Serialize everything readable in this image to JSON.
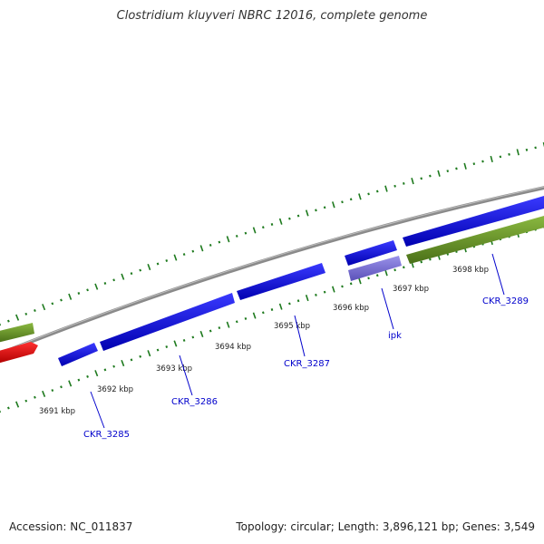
{
  "header": {
    "title": "Clostridium kluyveri NBRC 12016, complete genome"
  },
  "footer": {
    "accession": "Accession: NC_011837",
    "summary": "Topology: circular; Length: 3,896,121 bp; Genes: 3,549"
  },
  "colors": {
    "backbone": "#8a8a8a",
    "cds_blue": "#1010e0",
    "cds_light_purple": "#7a70d8",
    "cds_olive": "#6e9a2a",
    "cds_red": "#e01010",
    "tick_green": "#1e7a1e",
    "label_blue": "#0000cc"
  },
  "kbp_ticks": [
    "3691 kbp",
    "3692 kbp",
    "3693 kbp",
    "3694 kbp",
    "3695 kbp",
    "3696 kbp",
    "3697 kbp",
    "3698 kbp"
  ],
  "gene_labels": [
    "CKR_3285",
    "CKR_3286",
    "CKR_3287",
    "ipk",
    "CKR_3289"
  ]
}
